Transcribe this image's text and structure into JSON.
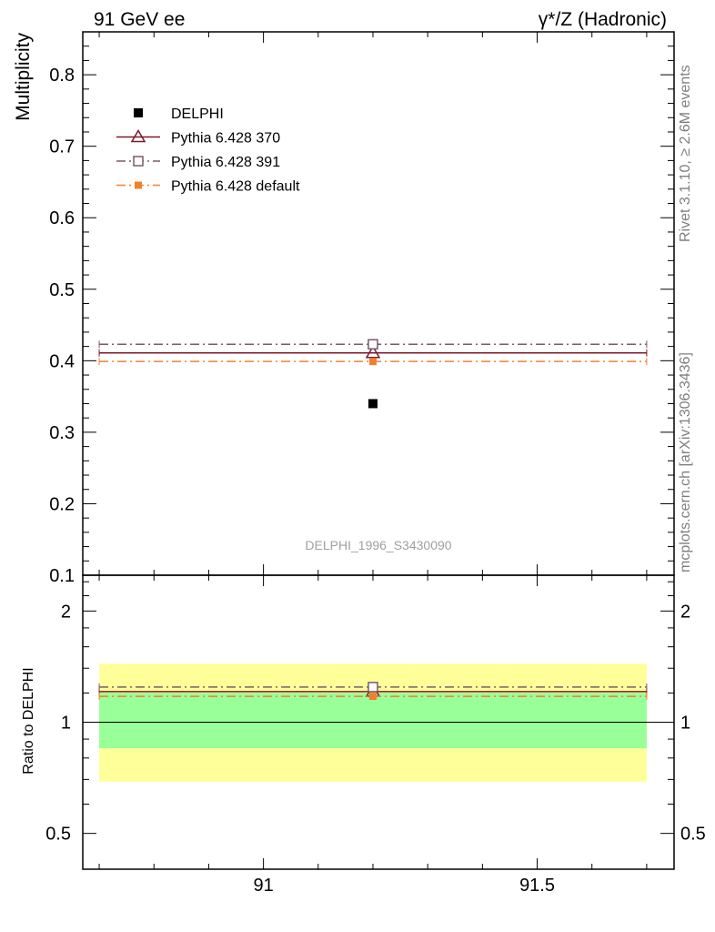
{
  "header": {
    "left": "91 GeV ee",
    "right": "γ*/Z (Hadronic)"
  },
  "side_labels": {
    "rivet": "Rivet 3.1.10, ≥ 2.6M events",
    "mcplots": "mcplots.cern.ch [arXiv:1306.3436]"
  },
  "analysis_label": "DELPHI_1996_S3430090",
  "colors": {
    "data": "#000000",
    "p370": "#7a1a2e",
    "p391": "#7a5a6a",
    "pdefault": "#f08030",
    "band_outer": "#ffff99",
    "band_inner": "#99ff99"
  },
  "chart_data": [
    {
      "type": "scatter",
      "panel": "main",
      "ylabel": "Multiplicity",
      "xlim": [
        90.67,
        91.75
      ],
      "ylim": [
        0.1,
        0.86
      ],
      "yticks": [
        0.1,
        0.2,
        0.3,
        0.4,
        0.5,
        0.6,
        0.7,
        0.8
      ],
      "ytick_labels": [
        "0.1",
        "0.2",
        "0.3",
        "0.4",
        "0.5",
        "0.6",
        "0.7",
        "0.8"
      ],
      "x_range": [
        90.7,
        91.7
      ],
      "legend_position": "top-left",
      "series": [
        {
          "name": "DELPHI",
          "x": [
            91.2
          ],
          "y": [
            0.34
          ],
          "marker": "filled-square",
          "line": "none",
          "color_key": "data"
        },
        {
          "name": "Pythia 6.428 370",
          "x": [
            91.2
          ],
          "y": [
            0.411
          ],
          "marker": "open-triangle",
          "line": "solid",
          "color_key": "p370"
        },
        {
          "name": "Pythia 6.428 391",
          "x": [
            91.2
          ],
          "y": [
            0.423
          ],
          "marker": "open-square",
          "line": "dashdot",
          "color_key": "p391"
        },
        {
          "name": "Pythia 6.428 default",
          "x": [
            91.2
          ],
          "y": [
            0.399
          ],
          "marker": "filled-square-small",
          "line": "dashdot",
          "color_key": "pdefault"
        }
      ]
    },
    {
      "type": "line",
      "panel": "ratio",
      "ylabel": "Ratio to DELPHI",
      "xlim": [
        90.67,
        91.75
      ],
      "ylim": [
        0.4,
        2.5
      ],
      "log_y": true,
      "yticks": [
        0.5,
        1,
        2
      ],
      "ytick_labels": [
        "0.5",
        "1",
        "2"
      ],
      "xticks": [
        91,
        91.5
      ],
      "xtick_labels": [
        "91",
        "91.5"
      ],
      "bands": {
        "outer": [
          0.69,
          1.44
        ],
        "inner": [
          0.85,
          1.2
        ]
      },
      "series": [
        {
          "name": "Pythia 6.428 370",
          "x": [
            91.2
          ],
          "y": [
            1.21
          ],
          "marker": "open-triangle",
          "line": "solid",
          "color_key": "p370"
        },
        {
          "name": "Pythia 6.428 391",
          "x": [
            91.2
          ],
          "y": [
            1.245
          ],
          "marker": "open-square",
          "line": "dashdot",
          "color_key": "p391"
        },
        {
          "name": "Pythia 6.428 default",
          "x": [
            91.2
          ],
          "y": [
            1.175
          ],
          "marker": "filled-square-small",
          "line": "dashdot",
          "color_key": "pdefault"
        }
      ]
    }
  ]
}
